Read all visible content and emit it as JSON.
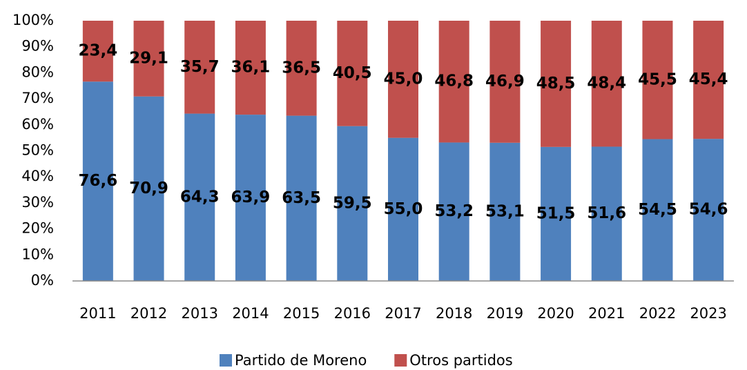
{
  "chart_data": {
    "type": "stacked_bar",
    "categories": [
      "2011",
      "2012",
      "2013",
      "2014",
      "2015",
      "2016",
      "2017",
      "2018",
      "2019",
      "2020",
      "2021",
      "2022",
      "2023"
    ],
    "series": [
      {
        "name": "Partido de Moreno",
        "color": "#4f81bd",
        "values": [
          76.6,
          70.9,
          64.3,
          63.9,
          63.5,
          59.5,
          55.0,
          53.2,
          53.1,
          51.5,
          51.6,
          54.5,
          54.6
        ],
        "value_labels": [
          "76,6",
          "70,9",
          "64,3",
          "63,9",
          "63,5",
          "59,5",
          "55,0",
          "53,2",
          "53,1",
          "51,5",
          "51,6",
          "54,5",
          "54,6"
        ]
      },
      {
        "name": "Otros partidos",
        "color": "#c0504d",
        "values": [
          23.4,
          29.1,
          35.7,
          36.1,
          36.5,
          40.5,
          45.0,
          46.8,
          46.9,
          48.5,
          48.4,
          45.5,
          45.4
        ],
        "value_labels": [
          "23,4",
          "29,1",
          "35,7",
          "36,1",
          "36,5",
          "40,5",
          "45,0",
          "46,8",
          "46,9",
          "48,5",
          "48,4",
          "45,5",
          "45,4"
        ]
      }
    ],
    "ylim": [
      0,
      100
    ],
    "yticks": [
      {
        "value": 0,
        "label": "0%"
      },
      {
        "value": 10,
        "label": "10%"
      },
      {
        "value": 20,
        "label": "20%"
      },
      {
        "value": 30,
        "label": "30%"
      },
      {
        "value": 40,
        "label": "40%"
      },
      {
        "value": 50,
        "label": "50%"
      },
      {
        "value": 60,
        "label": "60%"
      },
      {
        "value": 70,
        "label": "70%"
      },
      {
        "value": 80,
        "label": "80%"
      },
      {
        "value": 90,
        "label": "90%"
      },
      {
        "value": 100,
        "label": "100%"
      }
    ],
    "legend": "bottom"
  }
}
